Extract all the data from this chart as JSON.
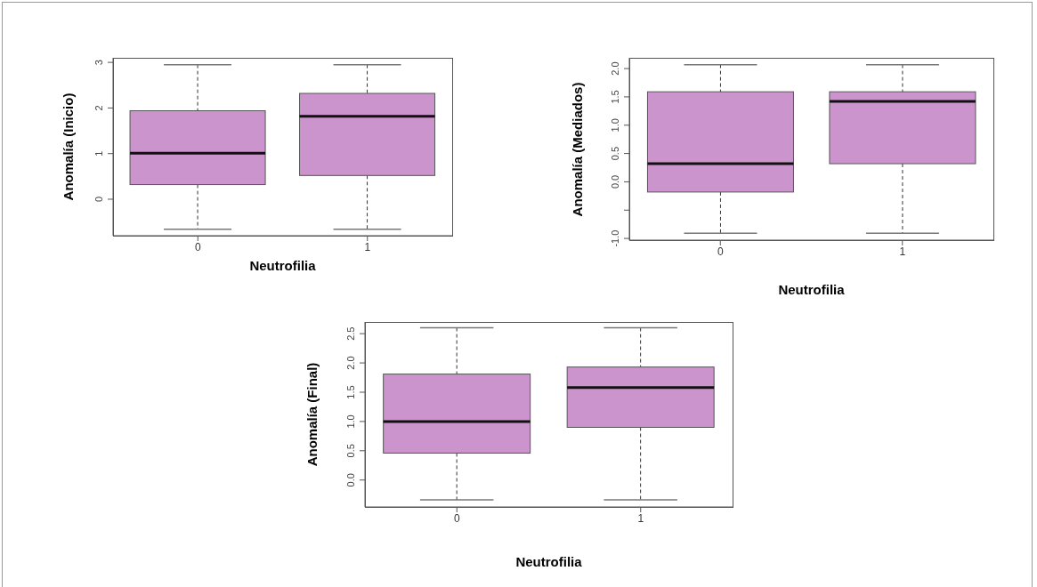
{
  "chart_data": [
    {
      "type": "box",
      "categories": [
        "0",
        "1"
      ],
      "xlabel": "Neutrofilia",
      "ylabel": "Anomalía (Inicio)",
      "color": "#cc94cc",
      "ylim": [
        -0.8,
        3.1
      ],
      "yticks": [
        0,
        1,
        2,
        3
      ],
      "boxes": [
        {
          "low": -0.66,
          "q1": 0.32,
          "median": 1.01,
          "q3": 1.94,
          "high": 2.95
        },
        {
          "low": -0.66,
          "q1": 0.52,
          "median": 1.82,
          "q3": 2.32,
          "high": 2.95
        }
      ]
    },
    {
      "type": "box",
      "categories": [
        "0",
        "1"
      ],
      "xlabel": "Neutrofilia",
      "ylabel": "Anomalía (Mediados)",
      "color": "#cc94cc",
      "ylim": [
        -1.03,
        2.19
      ],
      "yticks": [
        {
          "value": -1,
          "label": "-1.0"
        },
        {
          "value": -0.5,
          "label": null
        },
        {
          "value": 0,
          "label": "0.0"
        },
        {
          "value": 0.5,
          "label": "0.5"
        },
        {
          "value": 1,
          "label": "1.0"
        },
        {
          "value": 1.5,
          "label": "1.5"
        },
        {
          "value": 2,
          "label": "2.0"
        }
      ],
      "boxes": [
        {
          "low": -0.91,
          "q1": -0.18,
          "median": 0.32,
          "q3": 1.59,
          "high": 2.07
        },
        {
          "low": -0.91,
          "q1": 0.32,
          "median": 1.42,
          "q3": 1.59,
          "high": 2.07
        }
      ]
    },
    {
      "type": "box",
      "categories": [
        "0",
        "1"
      ],
      "xlabel": "Neutrofilia",
      "ylabel": "Anomalía (Final)",
      "color": "#cc94cc",
      "ylim": [
        -0.46,
        2.7
      ],
      "yticks": [
        {
          "value": 0,
          "label": "0.0"
        },
        {
          "value": 0.5,
          "label": "0.5"
        },
        {
          "value": 1,
          "label": "1.0"
        },
        {
          "value": 1.5,
          "label": "1.5"
        },
        {
          "value": 2,
          "label": "2.0"
        },
        {
          "value": 2.5,
          "label": "2.5"
        }
      ],
      "boxes": [
        {
          "low": -0.34,
          "q1": 0.46,
          "median": 1.0,
          "q3": 1.81,
          "high": 2.6
        },
        {
          "low": -0.34,
          "q1": 0.9,
          "median": 1.58,
          "q3": 1.93,
          "high": 2.6
        }
      ]
    }
  ]
}
